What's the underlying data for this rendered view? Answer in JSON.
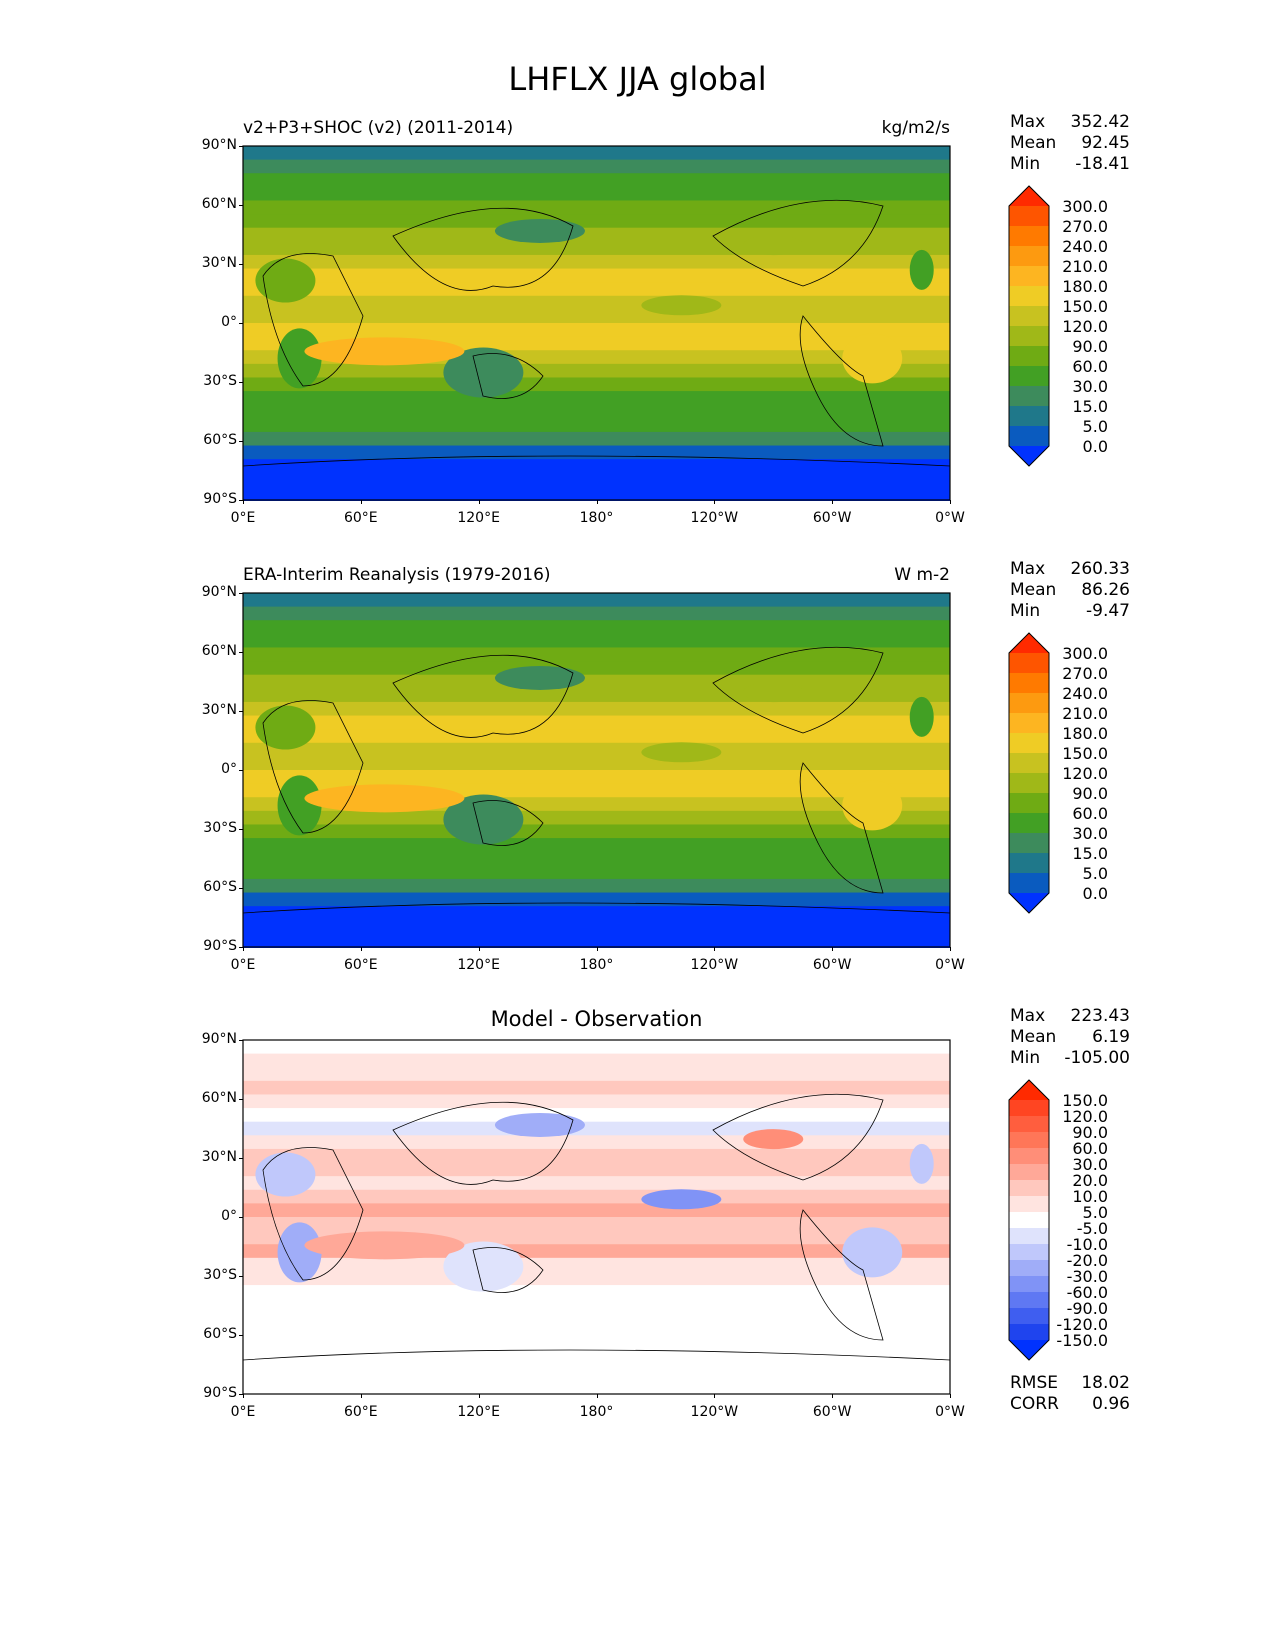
{
  "figure_title": "LHFLX JJA global",
  "lat_ticks": [
    "90°N",
    "60°N",
    "30°N",
    "0°",
    "30°S",
    "60°S",
    "90°S"
  ],
  "lon_ticks": [
    "0°E",
    "60°E",
    "120°E",
    "180°",
    "120°W",
    "60°W",
    "0°W"
  ],
  "panels": [
    {
      "title_left": "v2+P3+SHOC (v2) (2011-2014)",
      "title_right": "kg/m2/s",
      "title_center": "",
      "stats": [
        {
          "label": "Max",
          "value": "352.42"
        },
        {
          "label": "Mean",
          "value": "92.45"
        },
        {
          "label": "Min",
          "value": "-18.41"
        }
      ],
      "colorbar": "abs"
    },
    {
      "title_left": "ERA-Interim Reanalysis (1979-2016)",
      "title_right": "W m-2",
      "title_center": "",
      "stats": [
        {
          "label": "Max",
          "value": "260.33"
        },
        {
          "label": "Mean",
          "value": "86.26"
        },
        {
          "label": "Min",
          "value": "-9.47"
        }
      ],
      "colorbar": "abs"
    },
    {
      "title_left": "",
      "title_right": "",
      "title_center": "Model - Observation",
      "stats": [
        {
          "label": "Max",
          "value": "223.43"
        },
        {
          "label": "Mean",
          "value": "6.19"
        },
        {
          "label": "Min",
          "value": "-105.00"
        }
      ],
      "colorbar": "diff",
      "extra_stats": [
        {
          "label": "RMSE",
          "value": "18.02"
        },
        {
          "label": "CORR",
          "value": "0.96"
        }
      ]
    }
  ],
  "colorbars": {
    "abs": {
      "levels": [
        "300.0",
        "270.0",
        "240.0",
        "210.0",
        "180.0",
        "150.0",
        "120.0",
        "90.0",
        "60.0",
        "30.0",
        "15.0",
        "5.0",
        "0.0"
      ],
      "colors": [
        "#ff2a00",
        "#fe5500",
        "#ff7a00",
        "#fd9a10",
        "#fdb521",
        "#efcc25",
        "#c8c220",
        "#a0b818",
        "#6fab14",
        "#42a024",
        "#3d8b5c",
        "#1f788a",
        "#0a5bbf",
        "#0032fe"
      ]
    },
    "diff": {
      "levels": [
        "150.0",
        "120.0",
        "90.0",
        "60.0",
        "30.0",
        "20.0",
        "10.0",
        "5.0",
        "-5.0",
        "-10.0",
        "-20.0",
        "-30.0",
        "-60.0",
        "-90.0",
        "-120.0",
        "-150.0"
      ],
      "colors": [
        "#ff2a00",
        "#ff4522",
        "#ff5e3e",
        "#ff7658",
        "#ff8e78",
        "#ffa898",
        "#ffc8be",
        "#ffe4e0",
        "#ffffff",
        "#dfe3fc",
        "#c0c8fb",
        "#a0adf8",
        "#8093f6",
        "#5f78f3",
        "#3f5ef0",
        "#1f44ee",
        "#0032fe"
      ]
    }
  }
}
